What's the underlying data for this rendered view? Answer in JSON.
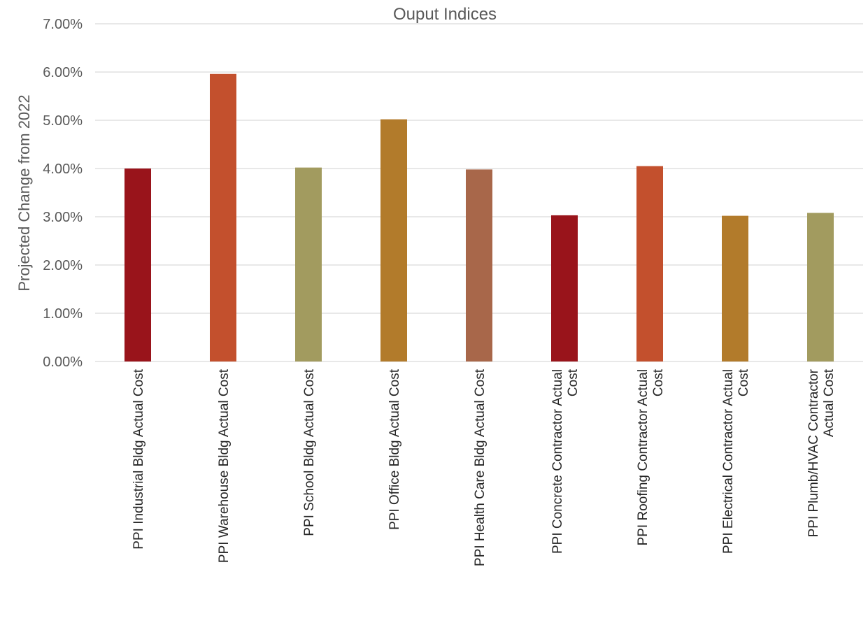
{
  "chart_data": {
    "type": "bar",
    "title": "Ouput Indices",
    "xlabel": "",
    "ylabel": "Projected Change from 2022",
    "ylim": [
      0,
      0.07
    ],
    "ytick_values": [
      0,
      0.01,
      0.02,
      0.03,
      0.04,
      0.05,
      0.06,
      0.07
    ],
    "ytick_labels": [
      "0.00%",
      "1.00%",
      "2.00%",
      "3.00%",
      "4.00%",
      "5.00%",
      "6.00%",
      "7.00%"
    ],
    "grid": true,
    "legend": "none",
    "categories": [
      [
        "PPI Industrial Bldg Actual Cost"
      ],
      [
        "PPI Warehouse Bldg Actual Cost"
      ],
      [
        "PPI School Bldg Actual Cost"
      ],
      [
        "PPI Office Bldg Actual Cost"
      ],
      [
        "PPI Health Care Bldg Actual Cost"
      ],
      [
        "PPI Concrete Contractor Actual",
        "Cost"
      ],
      [
        "PPI Roofing Contractor Actual",
        "Cost"
      ],
      [
        "PPI Electrical Contractor Actual",
        "Cost"
      ],
      [
        "PPI Plumb/HVAC Contractor",
        "Actual Cost"
      ]
    ],
    "values": [
      0.04,
      0.0596,
      0.0402,
      0.0502,
      0.0398,
      0.0303,
      0.0405,
      0.0302,
      0.0308
    ],
    "colors": [
      "#99141b",
      "#c3502d",
      "#a29b5f",
      "#b27b2b",
      "#a8674a",
      "#99141b",
      "#c3502d",
      "#b27b2b",
      "#a29b5f"
    ]
  }
}
